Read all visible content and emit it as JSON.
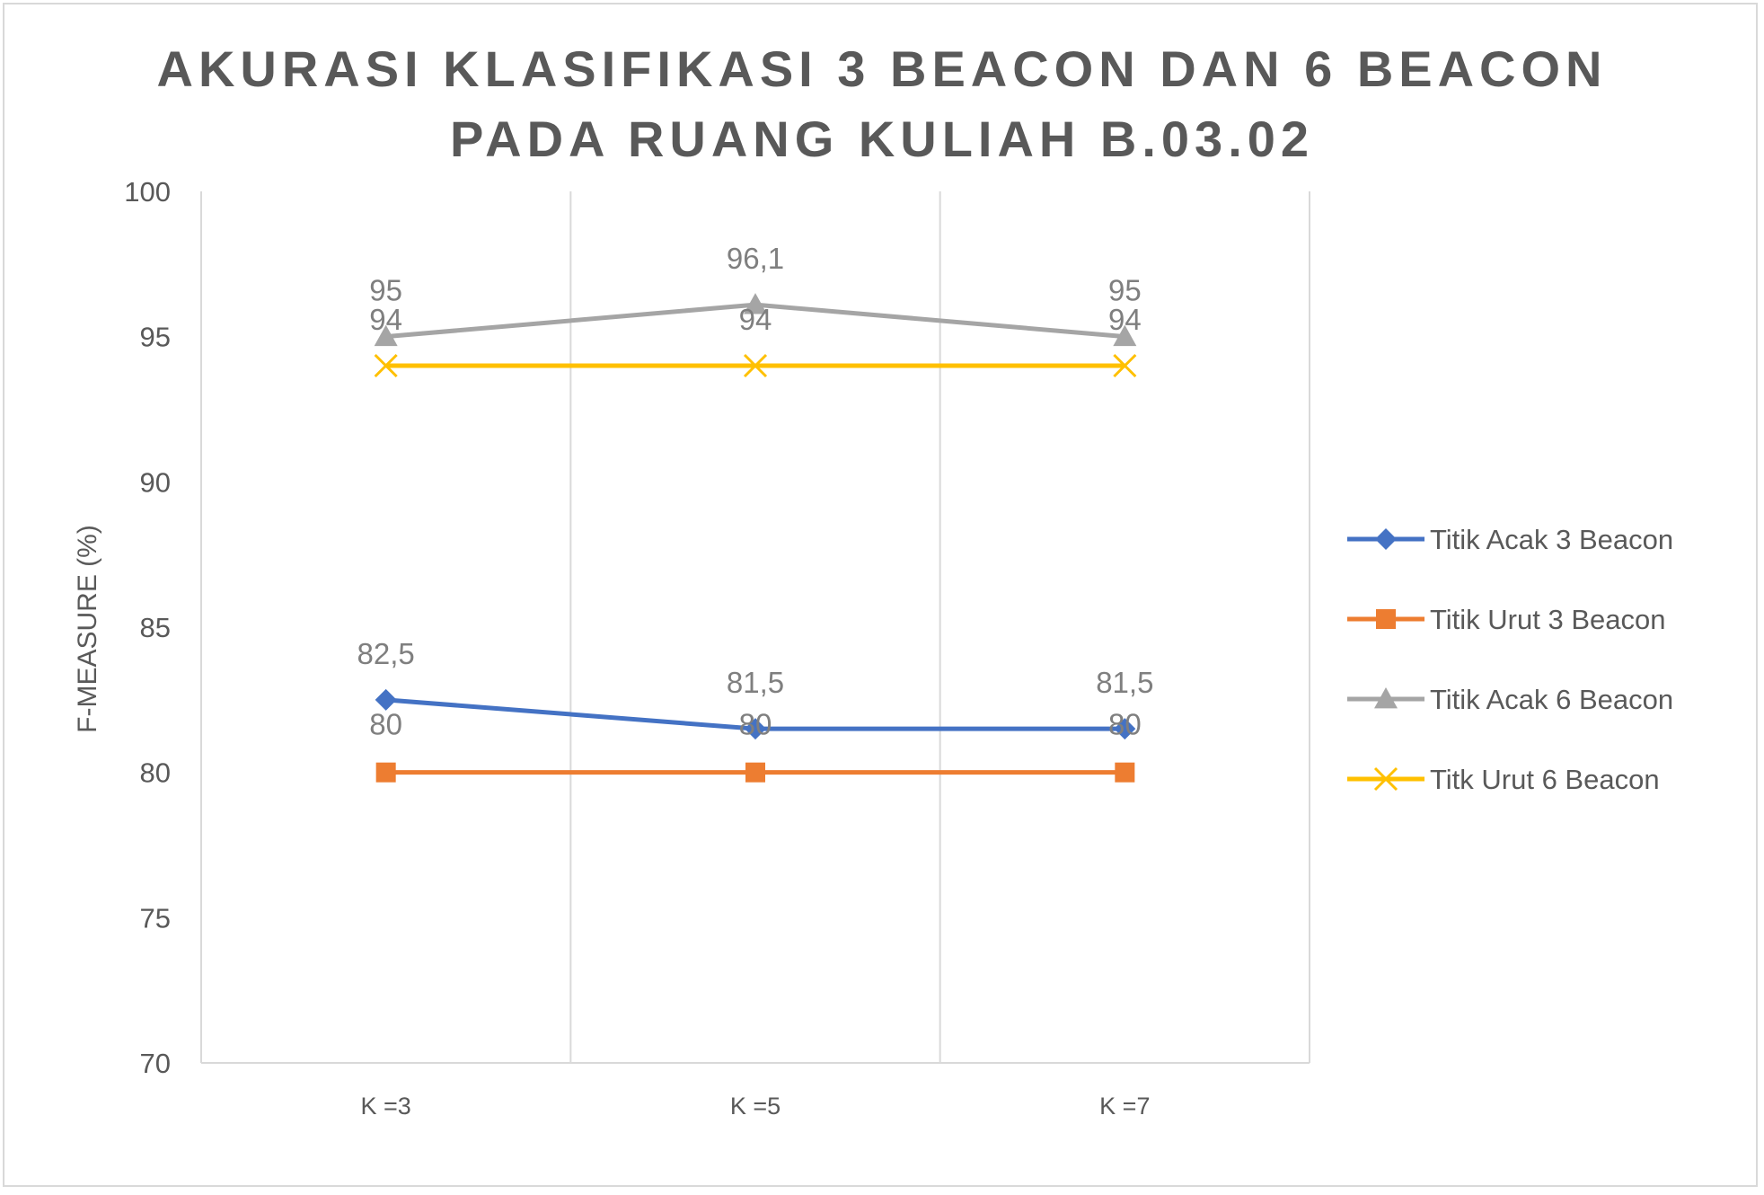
{
  "chart_data": {
    "type": "line",
    "title_lines": [
      "AKURASI KLASIFIKASI 3 BEACON DAN 6 BEACON",
      "PADA RUANG KULIAH B.03.02"
    ],
    "xlabel": "",
    "ylabel": "F-MEASURE (%)",
    "categories": [
      "K =3",
      "K =5",
      "K =7"
    ],
    "ylim": [
      70,
      100
    ],
    "yticks": [
      70,
      75,
      80,
      85,
      90,
      95,
      100
    ],
    "grid": "vertical",
    "legend_position": "right",
    "series": [
      {
        "name": "Titik Acak 3 Beacon",
        "values": [
          82.5,
          81.5,
          81.5
        ],
        "labels": [
          "82,5",
          "81,5",
          "81,5"
        ],
        "color": "#4472c4",
        "marker": "diamond"
      },
      {
        "name": "Titik Urut 3 Beacon",
        "values": [
          80,
          80,
          80
        ],
        "labels": [
          "80",
          "80",
          "80"
        ],
        "color": "#ed7d31",
        "marker": "square"
      },
      {
        "name": "Titik Acak 6 Beacon",
        "values": [
          95,
          96.1,
          95
        ],
        "labels": [
          "95",
          "96,1",
          "95"
        ],
        "color": "#a5a5a5",
        "marker": "triangle"
      },
      {
        "name": "Titk Urut 6 Beacon",
        "values": [
          94,
          94,
          94
        ],
        "labels": [
          "94",
          "94",
          "94"
        ],
        "color": "#ffc000",
        "marker": "x"
      }
    ]
  }
}
